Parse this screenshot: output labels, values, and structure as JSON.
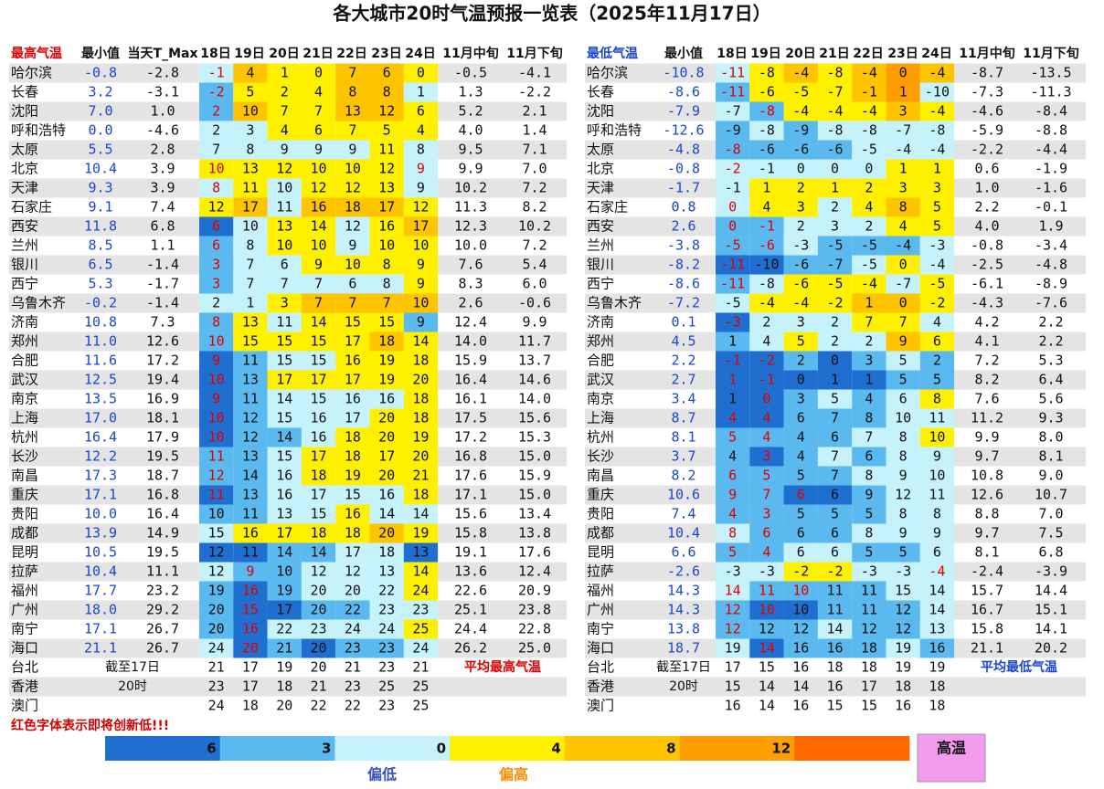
{
  "title": "各大城市20时气温预报一览表（2025年11月17日）",
  "table_max": {
    "headers": [
      "最高气温",
      "最小值",
      "当天T_Max",
      "18日",
      "19日",
      "20日",
      "21日",
      "22日",
      "23日",
      "24日",
      "11月中旬",
      "11月下旬"
    ],
    "rows": [
      {
        "city": "哈尔滨",
        "min": "-0.8",
        "max": "-2.8",
        "days": [
          -1,
          4,
          1,
          0,
          7,
          6,
          0
        ],
        "mid": "-0.5",
        "late": "-4.1",
        "red": [
          0
        ]
      },
      {
        "city": "长春",
        "min": "3.2",
        "max": "-3.1",
        "days": [
          -2,
          5,
          2,
          4,
          8,
          8,
          1
        ],
        "mid": "1.3",
        "late": "-2.2",
        "red": [
          0
        ]
      },
      {
        "city": "沈阳",
        "min": "7.0",
        "max": "1.0",
        "days": [
          2,
          10,
          7,
          7,
          13,
          12,
          6
        ],
        "mid": "5.2",
        "late": "2.1",
        "red": [
          0
        ]
      },
      {
        "city": "呼和浩特",
        "min": "0.0",
        "max": "-4.6",
        "days": [
          2,
          3,
          4,
          6,
          7,
          5,
          4
        ],
        "mid": "4.0",
        "late": "1.4"
      },
      {
        "city": "太原",
        "min": "5.5",
        "max": "2.8",
        "days": [
          7,
          8,
          9,
          9,
          9,
          11,
          8
        ],
        "mid": "9.5",
        "late": "7.1"
      },
      {
        "city": "北京",
        "min": "10.4",
        "max": "3.9",
        "days": [
          10,
          13,
          12,
          10,
          10,
          12,
          9
        ],
        "mid": "9.9",
        "late": "7.0",
        "red": [
          0,
          6
        ]
      },
      {
        "city": "天津",
        "min": "9.3",
        "max": "3.9",
        "days": [
          8,
          11,
          10,
          12,
          12,
          13,
          9
        ],
        "mid": "10.2",
        "late": "7.2",
        "red": [
          0
        ]
      },
      {
        "city": "石家庄",
        "min": "9.1",
        "max": "7.4",
        "days": [
          12,
          17,
          11,
          16,
          18,
          17,
          12
        ],
        "mid": "11.3",
        "late": "8.2"
      },
      {
        "city": "西安",
        "min": "11.8",
        "max": "6.8",
        "days": [
          6,
          10,
          13,
          14,
          12,
          16,
          17
        ],
        "mid": "12.3",
        "late": "10.2",
        "red": [
          0
        ]
      },
      {
        "city": "兰州",
        "min": "8.5",
        "max": "1.1",
        "days": [
          6,
          8,
          10,
          10,
          9,
          10,
          10
        ],
        "mid": "10.0",
        "late": "7.2",
        "red": [
          0
        ]
      },
      {
        "city": "银川",
        "min": "6.5",
        "max": "-1.4",
        "days": [
          3,
          7,
          6,
          9,
          10,
          8,
          9
        ],
        "mid": "7.6",
        "late": "5.4",
        "red": [
          0
        ]
      },
      {
        "city": "西宁",
        "min": "5.3",
        "max": "-1.7",
        "days": [
          3,
          7,
          7,
          7,
          6,
          8,
          9
        ],
        "mid": "8.3",
        "late": "6.0",
        "red": [
          0
        ]
      },
      {
        "city": "乌鲁木齐",
        "min": "-0.2",
        "max": "-1.4",
        "days": [
          2,
          1,
          3,
          7,
          7,
          7,
          10
        ],
        "mid": "2.6",
        "late": "-0.6"
      },
      {
        "city": "济南",
        "min": "10.8",
        "max": "7.3",
        "days": [
          8,
          13,
          11,
          14,
          15,
          15,
          9
        ],
        "mid": "12.4",
        "late": "9.9",
        "red": [
          0
        ]
      },
      {
        "city": "郑州",
        "min": "11.0",
        "max": "12.6",
        "days": [
          10,
          15,
          15,
          15,
          17,
          18,
          14
        ],
        "mid": "14.0",
        "late": "11.7",
        "red": [
          0
        ]
      },
      {
        "city": "合肥",
        "min": "11.6",
        "max": "17.2",
        "days": [
          9,
          11,
          15,
          15,
          16,
          19,
          18
        ],
        "mid": "15.9",
        "late": "13.7",
        "red": [
          0
        ]
      },
      {
        "city": "武汉",
        "min": "12.5",
        "max": "19.4",
        "days": [
          10,
          13,
          17,
          17,
          17,
          19,
          20
        ],
        "mid": "16.4",
        "late": "14.6",
        "red": [
          0
        ]
      },
      {
        "city": "南京",
        "min": "13.5",
        "max": "16.9",
        "days": [
          9,
          11,
          14,
          15,
          16,
          16,
          18
        ],
        "mid": "16.1",
        "late": "14.0",
        "red": [
          0
        ]
      },
      {
        "city": "上海",
        "min": "17.0",
        "max": "18.1",
        "days": [
          10,
          12,
          15,
          16,
          17,
          20,
          18
        ],
        "mid": "17.5",
        "late": "15.6",
        "red": [
          0
        ]
      },
      {
        "city": "杭州",
        "min": "16.4",
        "max": "17.9",
        "days": [
          10,
          12,
          14,
          16,
          18,
          20,
          19
        ],
        "mid": "17.2",
        "late": "15.3",
        "red": [
          0
        ]
      },
      {
        "city": "长沙",
        "min": "12.2",
        "max": "19.5",
        "days": [
          11,
          13,
          15,
          17,
          18,
          17,
          20
        ],
        "mid": "16.8",
        "late": "15.0",
        "red": [
          0
        ]
      },
      {
        "city": "南昌",
        "min": "17.3",
        "max": "18.7",
        "days": [
          12,
          14,
          16,
          18,
          19,
          20,
          21
        ],
        "mid": "17.6",
        "late": "15.9",
        "red": [
          0
        ]
      },
      {
        "city": "重庆",
        "min": "17.1",
        "max": "16.8",
        "days": [
          11,
          13,
          16,
          17,
          15,
          16,
          18
        ],
        "mid": "17.1",
        "late": "15.0",
        "red": [
          0
        ]
      },
      {
        "city": "贵阳",
        "min": "10.0",
        "max": "16.4",
        "days": [
          10,
          11,
          13,
          15,
          16,
          14,
          14
        ],
        "mid": "15.6",
        "late": "13.4"
      },
      {
        "city": "成都",
        "min": "13.9",
        "max": "14.9",
        "days": [
          15,
          16,
          17,
          18,
          18,
          20,
          19
        ],
        "mid": "15.8",
        "late": "13.8"
      },
      {
        "city": "昆明",
        "min": "10.5",
        "max": "19.5",
        "days": [
          12,
          11,
          14,
          14,
          17,
          18,
          13
        ],
        "mid": "19.1",
        "late": "17.6"
      },
      {
        "city": "拉萨",
        "min": "10.4",
        "max": "11.1",
        "days": [
          12,
          9,
          10,
          12,
          12,
          13,
          14
        ],
        "mid": "13.6",
        "late": "12.4",
        "red": [
          1
        ]
      },
      {
        "city": "福州",
        "min": "17.7",
        "max": "23.2",
        "days": [
          19,
          16,
          19,
          20,
          20,
          22,
          24
        ],
        "mid": "22.6",
        "late": "20.9",
        "red": [
          1
        ]
      },
      {
        "city": "广州",
        "min": "18.0",
        "max": "29.2",
        "days": [
          20,
          15,
          17,
          20,
          22,
          23,
          23
        ],
        "mid": "25.1",
        "late": "23.8",
        "red": [
          1
        ]
      },
      {
        "city": "南宁",
        "min": "17.1",
        "max": "26.7",
        "days": [
          20,
          16,
          22,
          23,
          24,
          24,
          25
        ],
        "mid": "24.4",
        "late": "22.8",
        "red": [
          1
        ]
      },
      {
        "city": "海口",
        "min": "21.1",
        "max": "26.7",
        "days": [
          24,
          20,
          21,
          20,
          23,
          23,
          24
        ],
        "mid": "26.2",
        "late": "25.0",
        "red": [
          1
        ]
      }
    ],
    "extra_rows": [
      {
        "city": "台北",
        "note": "截至17日",
        "days": [
          21,
          17,
          19,
          20,
          21,
          23,
          21
        ],
        "footnote": "平均最高气温"
      },
      {
        "city": "香港",
        "note": "20时",
        "days": [
          23,
          17,
          18,
          21,
          23,
          25,
          25
        ]
      },
      {
        "city": "澳门",
        "days": [
          24,
          18,
          20,
          22,
          22,
          23,
          25
        ]
      }
    ]
  },
  "table_min": {
    "headers": [
      "最低气温",
      "最小值",
      "18日",
      "19日",
      "20日",
      "21日",
      "22日",
      "23日",
      "24日",
      "11月中旬",
      "11月下旬"
    ],
    "rows": [
      {
        "city": "哈尔滨",
        "min": "-10.8",
        "days": [
          -11,
          -8,
          -4,
          -8,
          -4,
          0,
          -4
        ],
        "mid": "-8.7",
        "late": "-13.5",
        "red": [
          0
        ]
      },
      {
        "city": "长春",
        "min": "-8.6",
        "days": [
          -11,
          -6,
          -5,
          -7,
          -1,
          1,
          -10
        ],
        "mid": "-7.3",
        "late": "-11.3",
        "red": [
          0
        ]
      },
      {
        "city": "沈阳",
        "min": "-7.9",
        "days": [
          -7,
          -8,
          -4,
          -4,
          -4,
          3,
          -4
        ],
        "mid": "-4.6",
        "late": "-8.4",
        "red": [
          1
        ]
      },
      {
        "city": "呼和浩特",
        "min": "-12.6",
        "days": [
          -9,
          -8,
          -9,
          -8,
          -8,
          -7,
          -8
        ],
        "mid": "-5.9",
        "late": "-8.8"
      },
      {
        "city": "太原",
        "min": "-4.8",
        "days": [
          -8,
          -6,
          -6,
          -6,
          -5,
          -4,
          -4
        ],
        "mid": "-2.2",
        "late": "-4.4",
        "red": [
          0
        ]
      },
      {
        "city": "北京",
        "min": "-0.8",
        "days": [
          -2,
          -1,
          0,
          0,
          0,
          1,
          1
        ],
        "mid": "0.6",
        "late": "-1.9",
        "red": [
          0
        ]
      },
      {
        "city": "天津",
        "min": "-1.7",
        "days": [
          -1,
          1,
          2,
          1,
          2,
          3,
          3
        ],
        "mid": "1.0",
        "late": "-1.6"
      },
      {
        "city": "石家庄",
        "min": "0.8",
        "days": [
          0,
          4,
          3,
          2,
          4,
          8,
          5
        ],
        "mid": "2.2",
        "late": "-0.1",
        "red": [
          0
        ]
      },
      {
        "city": "西安",
        "min": "2.6",
        "days": [
          0,
          -1,
          2,
          3,
          2,
          4,
          5
        ],
        "mid": "4.0",
        "late": "1.9",
        "red": [
          0,
          1
        ]
      },
      {
        "city": "兰州",
        "min": "-3.8",
        "days": [
          -5,
          -6,
          -3,
          -5,
          -5,
          -4,
          -3
        ],
        "mid": "-0.8",
        "late": "-3.4",
        "red": [
          0,
          1
        ]
      },
      {
        "city": "银川",
        "min": "-8.2",
        "days": [
          -11,
          -10,
          -6,
          -7,
          -5,
          0,
          -4
        ],
        "mid": "-2.5",
        "late": "-4.8",
        "red": [
          0
        ]
      },
      {
        "city": "西宁",
        "min": "-8.6",
        "days": [
          -11,
          -8,
          -6,
          -5,
          -4,
          -7,
          -5
        ],
        "mid": "-6.1",
        "late": "-8.9",
        "red": [
          0
        ]
      },
      {
        "city": "乌鲁木齐",
        "min": "-7.2",
        "days": [
          -5,
          -4,
          -4,
          -2,
          1,
          0,
          -2
        ],
        "mid": "-4.3",
        "late": "-7.6"
      },
      {
        "city": "济南",
        "min": "0.1",
        "days": [
          -3,
          2,
          3,
          2,
          7,
          7,
          4
        ],
        "mid": "4.2",
        "late": "2.2",
        "red": [
          0
        ]
      },
      {
        "city": "郑州",
        "min": "4.5",
        "days": [
          1,
          4,
          5,
          2,
          2,
          9,
          6
        ],
        "mid": "4.1",
        "late": "2.2"
      },
      {
        "city": "合肥",
        "min": "2.2",
        "days": [
          -1,
          -2,
          2,
          0,
          3,
          5,
          2
        ],
        "mid": "7.2",
        "late": "5.3",
        "red": [
          0,
          1
        ]
      },
      {
        "city": "武汉",
        "min": "2.7",
        "days": [
          1,
          -1,
          0,
          1,
          1,
          5,
          5
        ],
        "mid": "8.2",
        "late": "6.4",
        "red": [
          0,
          1
        ]
      },
      {
        "city": "南京",
        "min": "3.4",
        "days": [
          1,
          0,
          3,
          5,
          4,
          6,
          8
        ],
        "mid": "7.6",
        "late": "5.6",
        "red": [
          1
        ]
      },
      {
        "city": "上海",
        "min": "8.7",
        "days": [
          4,
          4,
          6,
          7,
          8,
          10,
          11
        ],
        "mid": "11.2",
        "late": "9.3",
        "red": [
          0,
          1
        ]
      },
      {
        "city": "杭州",
        "min": "8.1",
        "days": [
          5,
          4,
          4,
          6,
          7,
          8,
          10
        ],
        "mid": "9.9",
        "late": "8.0",
        "red": [
          0,
          1
        ]
      },
      {
        "city": "长沙",
        "min": "3.7",
        "days": [
          4,
          3,
          4,
          7,
          6,
          8,
          9
        ],
        "mid": "9.7",
        "late": "8.1",
        "red": [
          1
        ]
      },
      {
        "city": "南昌",
        "min": "8.2",
        "days": [
          6,
          5,
          5,
          7,
          8,
          9,
          10
        ],
        "mid": "10.8",
        "late": "9.0",
        "red": [
          0,
          1
        ]
      },
      {
        "city": "重庆",
        "min": "10.6",
        "days": [
          9,
          7,
          6,
          6,
          9,
          12,
          11
        ],
        "mid": "12.6",
        "late": "10.7",
        "red": [
          0,
          1,
          2
        ]
      },
      {
        "city": "贵阳",
        "min": "7.4",
        "days": [
          4,
          3,
          5,
          5,
          5,
          8,
          8
        ],
        "mid": "8.8",
        "late": "7.0",
        "red": [
          0,
          1
        ]
      },
      {
        "city": "成都",
        "min": "10.4",
        "days": [
          8,
          6,
          6,
          6,
          8,
          9,
          9
        ],
        "mid": "9.7",
        "late": "7.5",
        "red": [
          0,
          1
        ]
      },
      {
        "city": "昆明",
        "min": "6.6",
        "days": [
          5,
          4,
          6,
          6,
          5,
          5,
          6
        ],
        "mid": "8.1",
        "late": "6.8",
        "red": [
          0,
          1
        ]
      },
      {
        "city": "拉萨",
        "min": "-2.6",
        "days": [
          -3,
          -3,
          -2,
          -2,
          -3,
          -3,
          -4
        ],
        "mid": "-2.4",
        "late": "-3.9",
        "red": [
          6
        ]
      },
      {
        "city": "福州",
        "min": "14.3",
        "days": [
          14,
          11,
          10,
          11,
          11,
          15,
          14
        ],
        "mid": "15.7",
        "late": "14.4",
        "red": [
          0,
          1,
          2
        ]
      },
      {
        "city": "广州",
        "min": "14.3",
        "days": [
          12,
          10,
          10,
          11,
          11,
          12,
          14
        ],
        "mid": "16.7",
        "late": "15.1",
        "red": [
          0,
          1
        ]
      },
      {
        "city": "南宁",
        "min": "13.8",
        "days": [
          12,
          12,
          12,
          14,
          12,
          12,
          13
        ],
        "mid": "15.8",
        "late": "14.1",
        "red": [
          0
        ]
      },
      {
        "city": "海口",
        "min": "18.7",
        "days": [
          19,
          14,
          16,
          16,
          18,
          19,
          16
        ],
        "mid": "21.1",
        "late": "20.2",
        "red": [
          1
        ]
      }
    ],
    "extra_rows": [
      {
        "city": "台北",
        "note": "截至17日",
        "days": [
          17,
          15,
          16,
          18,
          18,
          19,
          19
        ],
        "footnote": "平均最低气温"
      },
      {
        "city": "香港",
        "note": "20时",
        "days": [
          15,
          14,
          14,
          16,
          17,
          18,
          18
        ]
      },
      {
        "city": "澳门",
        "days": [
          16,
          14,
          16,
          15,
          15,
          16,
          18
        ]
      }
    ]
  },
  "footer_note": "红色字体表示即将创新低!!!",
  "legend": {
    "ticks": [
      {
        "value": -6,
        "label": "6"
      },
      {
        "value": -3,
        "label": "3"
      },
      0,
      4,
      8,
      {
        "value": 12,
        "label": "12"
      }
    ],
    "colors": [
      "#1f6fd1",
      "#5ab9ef",
      "#c6f3fb",
      "#fff000",
      "#ffc400",
      "#ff9e00",
      "#ff6a00"
    ],
    "low": "偏低",
    "high": "偏高",
    "badge": "高温"
  }
}
